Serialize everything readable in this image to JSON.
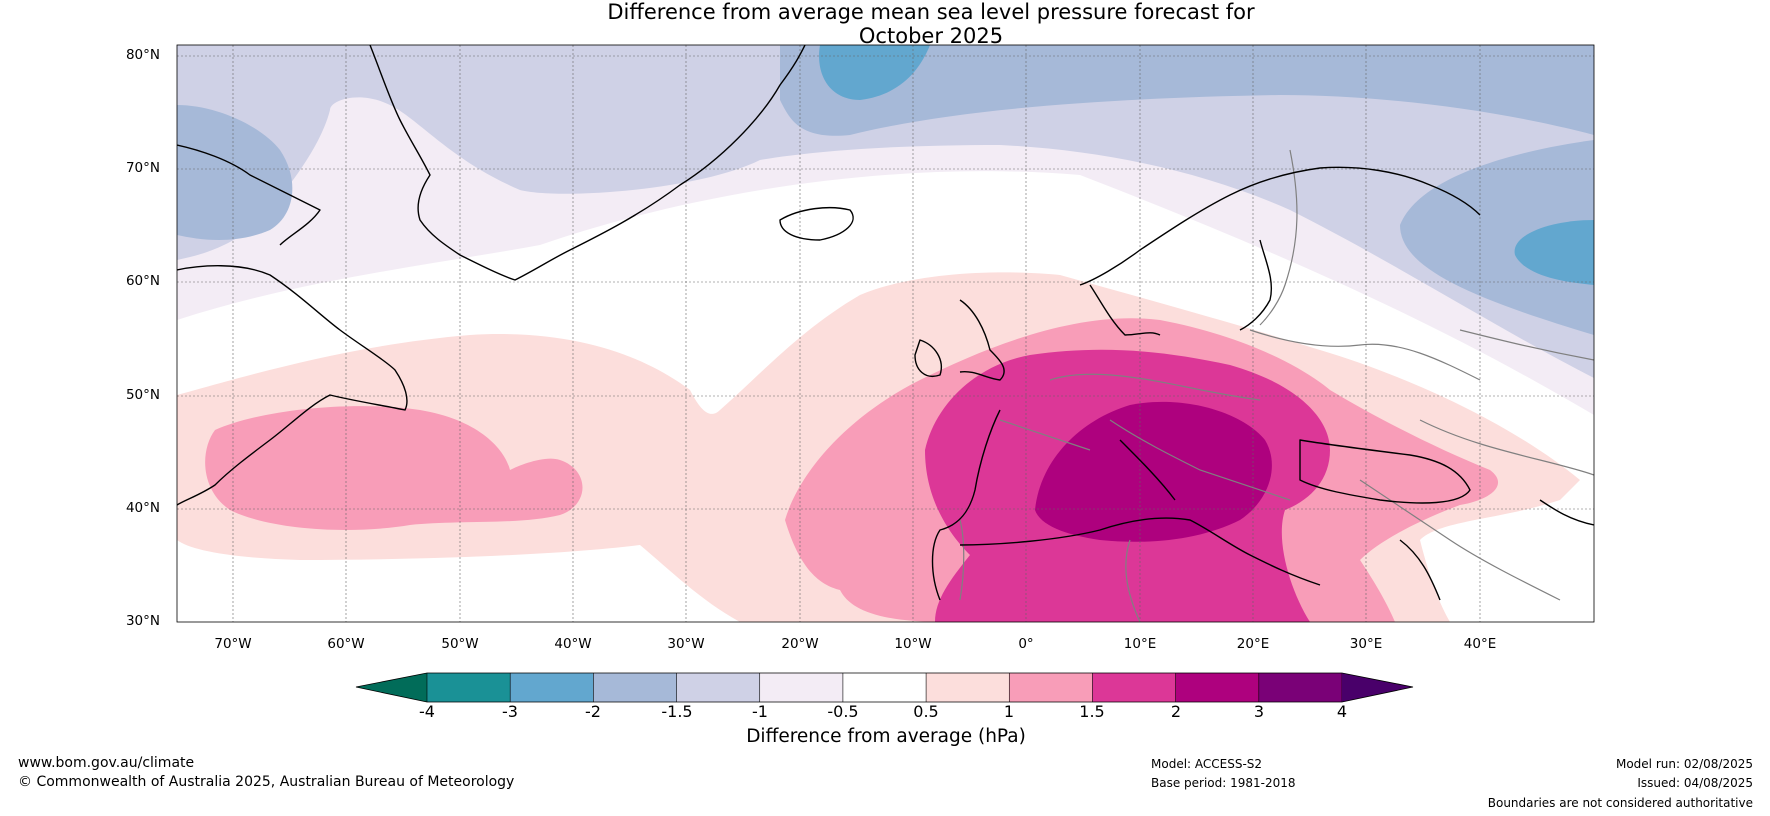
{
  "title_line1": "Difference from average mean sea level pressure forecast for",
  "title_line2": "October 2025",
  "lat_labels": [
    "80°N",
    "70°N",
    "60°N",
    "50°N",
    "40°N",
    "30°N"
  ],
  "lon_labels": [
    "70°W",
    "60°W",
    "50°W",
    "40°W",
    "30°W",
    "20°W",
    "10°W",
    "0°",
    "10°E",
    "20°E",
    "30°E",
    "40°E"
  ],
  "colorbar": {
    "ticks": [
      "-4",
      "-3",
      "-2",
      "-1.5",
      "-1",
      "-0.5",
      "0.5",
      "1",
      "1.5",
      "2",
      "3",
      "4"
    ],
    "colors": [
      "#1a9196",
      "#62a7cf",
      "#a6b9d8",
      "#cfd1e6",
      "#f3ecf5",
      "#ffffff",
      "#fcdedc",
      "#f89db8",
      "#dc3797",
      "#ae017e",
      "#7a0177"
    ],
    "extend_low_color": "#016c59",
    "extend_high_color": "#49006a",
    "caption": "Difference from average (hPa)"
  },
  "footer": {
    "website": "www.bom.gov.au/climate",
    "copyright": "© Commonwealth of Australia 2025, Australian Bureau of Meteorology",
    "model": "Model: ACCESS-S2",
    "base_period": "Base period: 1981-2018",
    "model_run": "Model run: 02/08/2025",
    "issued": "Issued: 04/08/2025",
    "disclaimer": "Boundaries are not considered authoritative"
  }
}
